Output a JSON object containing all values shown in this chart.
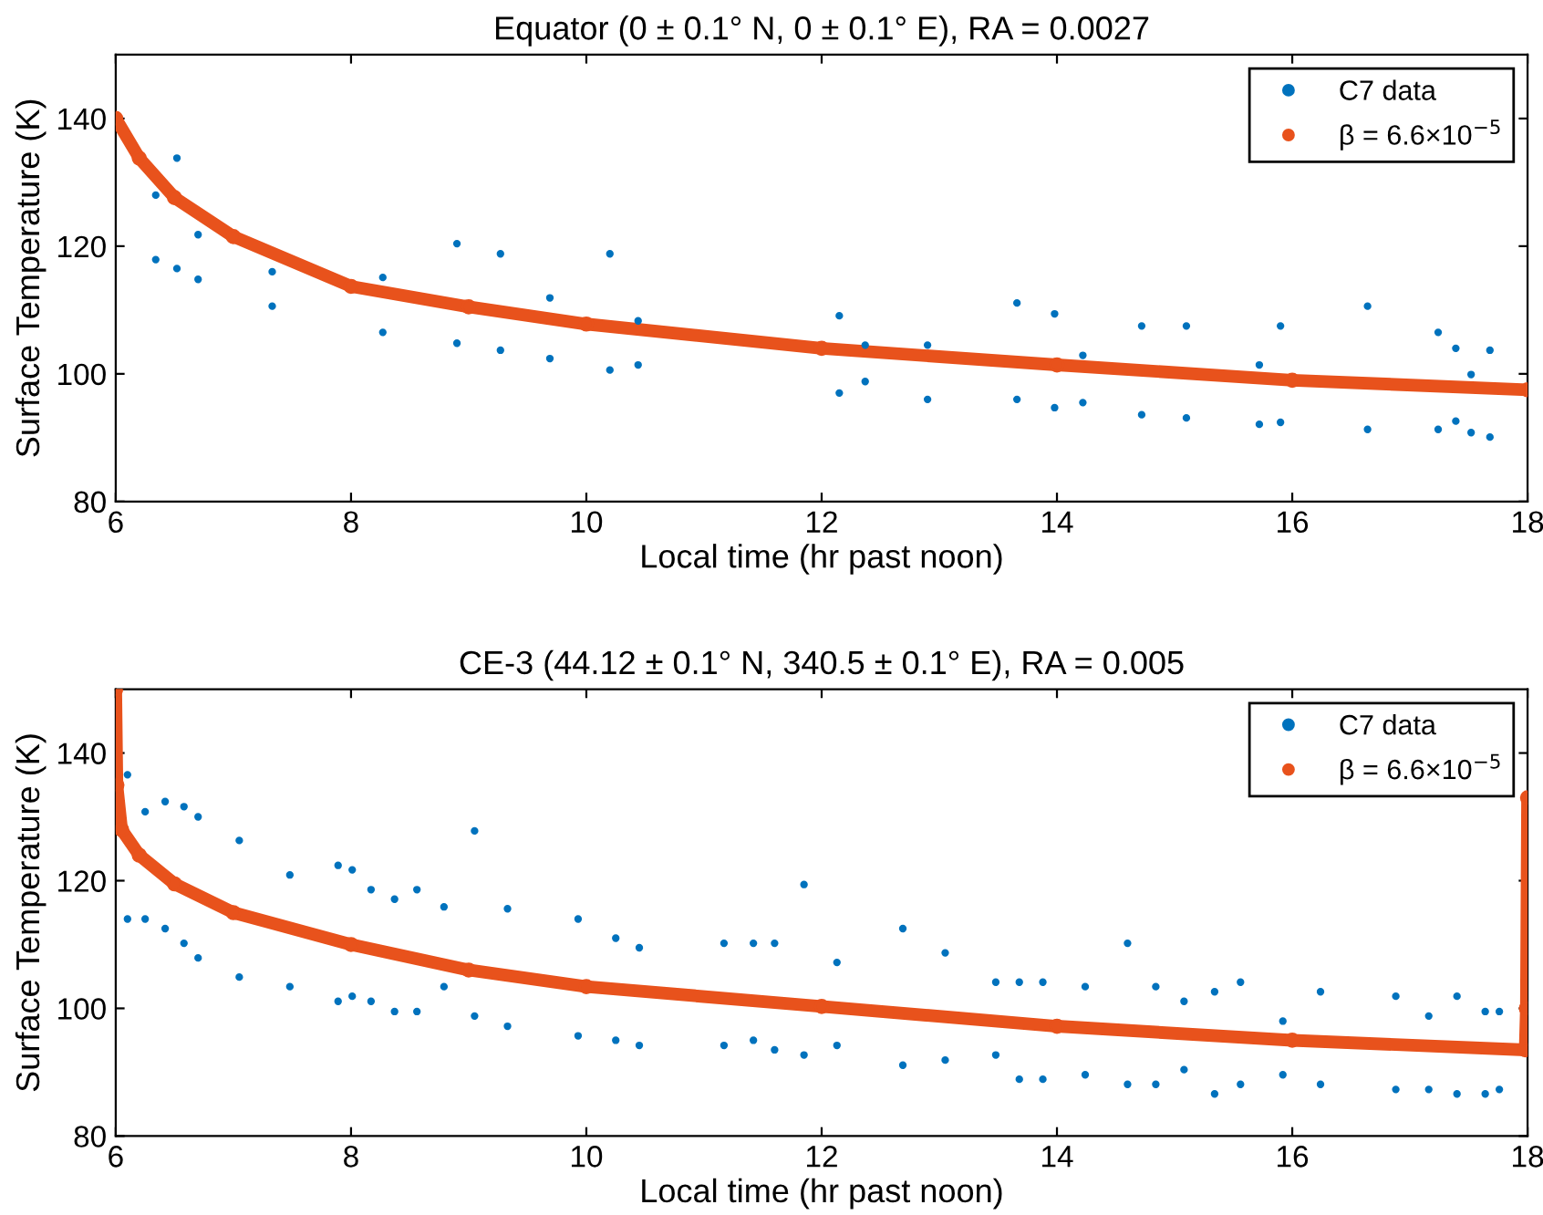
{
  "chart_data": [
    {
      "type": "scatter",
      "title": "Equator (0 ± 0.1° N, 0 ± 0.1° E), RA = 0.0027",
      "xlabel": "Local time (hr past noon)",
      "ylabel": "Surface Temperature (K)",
      "xlim": [
        6,
        18
      ],
      "ylim": [
        80,
        150
      ],
      "xticks": [
        6,
        8,
        10,
        12,
        14,
        16,
        18
      ],
      "yticks": [
        80,
        100,
        120,
        140
      ],
      "grid": false,
      "legend": "top right",
      "marker": "circle",
      "series": [
        {
          "name": "C7 data",
          "color": "#0072bd",
          "x": [
            6.34,
            6.34,
            6.52,
            6.52,
            6.7,
            6.7,
            7.33,
            7.33,
            8.27,
            8.27,
            8.9,
            8.9,
            9.27,
            9.27,
            9.69,
            9.69,
            10.2,
            10.2,
            10.44,
            10.44,
            12.15,
            12.15,
            12.37,
            12.37,
            12.9,
            12.9,
            13.66,
            13.66,
            13.98,
            13.98,
            14.22,
            14.22,
            14.72,
            14.72,
            15.1,
            15.1,
            15.72,
            15.72,
            15.9,
            15.9,
            16.64,
            16.64,
            17.24,
            17.24,
            17.39,
            17.39,
            17.52,
            17.52,
            17.68,
            17.68
          ],
          "values": [
            128,
            117.9,
            133.8,
            116.5,
            121.8,
            114.8,
            116,
            110.6,
            115.1,
            106.5,
            120.4,
            104.8,
            118.8,
            103.7,
            111.9,
            102.4,
            118.8,
            100.6,
            108.3,
            101.4,
            109.1,
            97,
            104.5,
            98.8,
            104.5,
            96,
            111.1,
            96,
            109.4,
            94.7,
            102.9,
            95.5,
            107.5,
            93.6,
            107.5,
            93.1,
            101.4,
            92.1,
            107.5,
            92.4,
            110.6,
            91.3,
            106.5,
            91.3,
            104,
            92.6,
            99.9,
            90.8,
            103.7,
            90.1
          ]
        },
        {
          "name": "β = 6.6×10$^{−5}$",
          "color": "#e8521c",
          "type": "line",
          "x": [
            6,
            6.2,
            6.5,
            7,
            8,
            9,
            10,
            12,
            14,
            16,
            18
          ],
          "values": [
            140,
            133.8,
            127.6,
            121.5,
            113.7,
            110.5,
            107.8,
            104,
            101.4,
            99,
            97.5
          ]
        }
      ]
    },
    {
      "type": "scatter",
      "title": "CE-3 (44.12 ± 0.1° N, 340.5 ± 0.1° E), RA = 0.005",
      "xlabel": "Local time (hr past noon)",
      "ylabel": "Surface Temperature (K)",
      "xlim": [
        6,
        18
      ],
      "ylim": [
        80,
        150
      ],
      "xticks": [
        6,
        8,
        10,
        12,
        14,
        16,
        18
      ],
      "yticks": [
        80,
        100,
        120,
        140
      ],
      "grid": false,
      "legend": "top right",
      "marker": "circle",
      "series": [
        {
          "name": "C7 data",
          "color": "#0072bd",
          "x": [
            6.1,
            6.1,
            6.25,
            6.25,
            6.42,
            6.42,
            6.58,
            6.58,
            6.7,
            6.7,
            7.05,
            7.05,
            7.48,
            7.48,
            7.89,
            7.89,
            8.01,
            8.01,
            8.17,
            8.17,
            8.37,
            8.37,
            8.56,
            8.56,
            8.79,
            8.79,
            9.05,
            9.05,
            9.33,
            9.33,
            9.93,
            9.93,
            10.25,
            10.25,
            10.45,
            10.45,
            11.17,
            11.17,
            11.42,
            11.42,
            11.6,
            11.6,
            11.85,
            11.85,
            12.13,
            12.13,
            12.69,
            12.69,
            13.05,
            13.05,
            13.48,
            13.48,
            13.68,
            13.68,
            13.88,
            13.88,
            14.24,
            14.24,
            14.6,
            14.6,
            14.84,
            14.84,
            15.08,
            15.08,
            15.34,
            15.34,
            15.56,
            15.56,
            15.92,
            15.92,
            16.24,
            16.24,
            16.88,
            16.88,
            17.16,
            17.16,
            17.4,
            17.4,
            17.64,
            17.64,
            17.76,
            17.76
          ],
          "values": [
            136.6,
            114,
            130.8,
            114,
            132.4,
            112.5,
            131.6,
            110.2,
            130,
            107.9,
            126.3,
            104.9,
            120.9,
            103.4,
            122.4,
            101.1,
            121.7,
            101.9,
            118.6,
            101.1,
            117.1,
            99.5,
            118.6,
            99.5,
            115.9,
            103.4,
            127.8,
            98.8,
            115.6,
            97.2,
            114,
            95.7,
            111,
            95,
            109.5,
            94.2,
            110.2,
            94.2,
            110.2,
            95,
            110.2,
            93.5,
            119.4,
            92.7,
            107.2,
            94.2,
            112.5,
            91.1,
            108.7,
            91.9,
            104.1,
            92.7,
            104.1,
            88.9,
            104.1,
            88.9,
            103.4,
            89.6,
            110.2,
            88.1,
            103.4,
            88.1,
            101.1,
            90.4,
            102.6,
            86.6,
            104.1,
            88.1,
            98,
            89.6,
            102.6,
            88.1,
            101.9,
            87.3,
            98.8,
            87.3,
            101.9,
            86.6,
            99.5,
            86.6,
            99.5,
            87.3
          ]
        },
        {
          "name": "β = 6.6×10$^{−5}$",
          "color": "#e8521c",
          "type": "line",
          "x": [
            6,
            6.01,
            6.05,
            6.2,
            6.5,
            7,
            8,
            9,
            10,
            12,
            14,
            16,
            17.98,
            17.99,
            18
          ],
          "values": [
            150,
            135,
            128,
            124,
            119.5,
            115,
            110,
            106,
            103.4,
            100.3,
            97.2,
            95,
            93.5,
            100,
            133
          ]
        }
      ]
    }
  ]
}
